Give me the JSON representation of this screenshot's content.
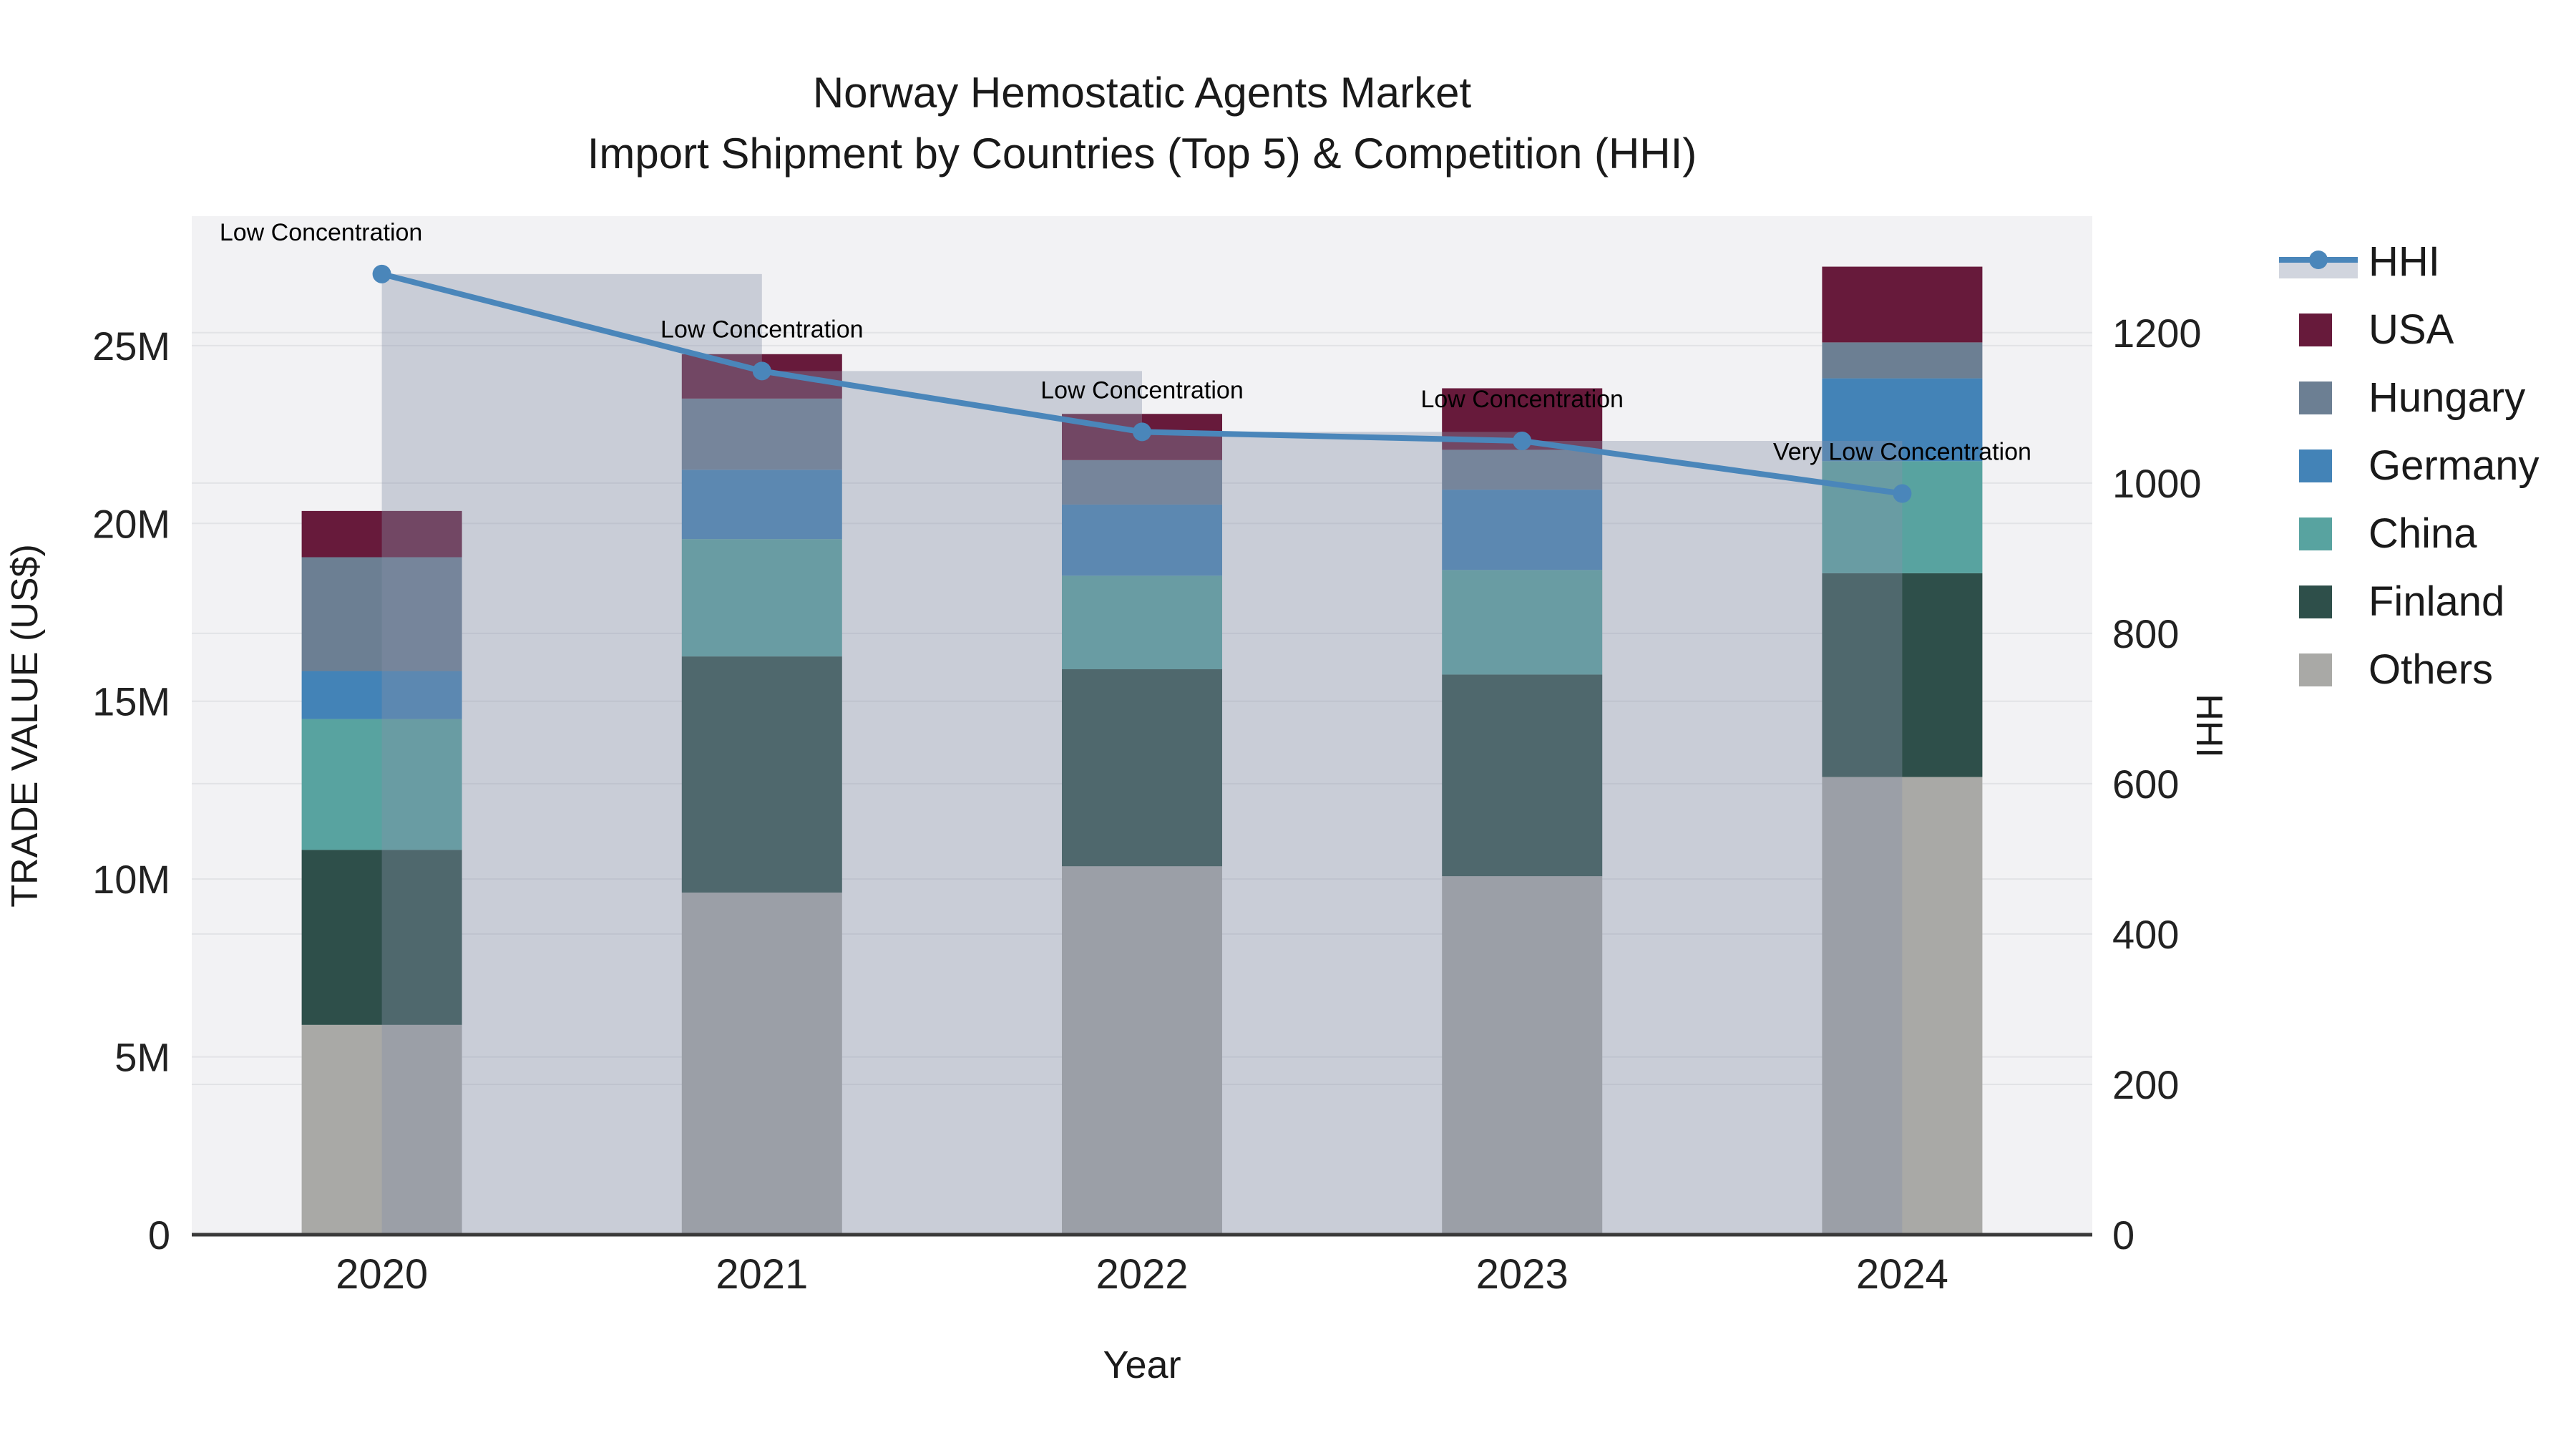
{
  "title": {
    "line1": "Norway Hemostatic Agents Market",
    "line2": "Import Shipment by Countries (Top 5) & Competition (HHI)"
  },
  "axes": {
    "xlabel": "Year",
    "ylabel_left": "TRADE VALUE (US$)",
    "ylabel_right": "HHI",
    "yticks_left_labels": [
      "0",
      "5M",
      "10M",
      "15M",
      "20M",
      "25M"
    ],
    "yticks_left_values": [
      0,
      5,
      10,
      15,
      20,
      25
    ],
    "yticks_right_labels": [
      "0",
      "200",
      "400",
      "600",
      "800",
      "1000",
      "1200"
    ],
    "yticks_right_values": [
      0,
      200,
      400,
      600,
      800,
      1000,
      1200
    ],
    "ylim_left": [
      0,
      28.64
    ],
    "ylim_right": [
      0,
      1355
    ]
  },
  "chart_data": {
    "type": "bar+line",
    "categories": [
      "2020",
      "2021",
      "2022",
      "2023",
      "2024"
    ],
    "unit": "US$ millions",
    "stack_order_bottom_to_top": [
      "Others",
      "Finland",
      "China",
      "Germany",
      "Hungary",
      "USA"
    ],
    "series": [
      {
        "name": "Others",
        "color": "#A9A9A6",
        "values": [
          5.9,
          9.62,
          10.36,
          10.08,
          12.87
        ]
      },
      {
        "name": "Finland",
        "color": "#2E4F4A",
        "values": [
          4.92,
          6.64,
          5.54,
          5.67,
          5.73
        ]
      },
      {
        "name": "China",
        "color": "#58A3A0",
        "values": [
          3.68,
          3.3,
          2.63,
          2.94,
          3.15
        ]
      },
      {
        "name": "Germany",
        "color": "#4383B7",
        "values": [
          1.35,
          1.95,
          2.0,
          2.26,
          2.33
        ]
      },
      {
        "name": "Hungary",
        "color": "#6C7F93",
        "values": [
          3.2,
          2.0,
          1.25,
          1.12,
          1.01
        ]
      },
      {
        "name": "USA",
        "color": "#671A3B",
        "values": [
          1.3,
          1.25,
          1.3,
          1.73,
          2.13
        ]
      }
    ],
    "totals": [
      20.35,
      24.76,
      23.08,
      23.8,
      27.22
    ],
    "line": {
      "name": "HHI",
      "color": "#4A86BA",
      "fill_color": "rgba(134,145,168,0.38)",
      "values": [
        1278,
        1149,
        1068,
        1056,
        986
      ],
      "fill_style": "step-hv-to-zero"
    },
    "annotations": [
      {
        "text": "Low Concentration",
        "year": "2020",
        "dx": -85
      },
      {
        "text": "Low Concentration",
        "year": "2021",
        "dx": 0
      },
      {
        "text": "Low Concentration",
        "year": "2022",
        "dx": 0
      },
      {
        "text": "Low Concentration",
        "year": "2023",
        "dx": 0
      },
      {
        "text": "Very Low Concentration",
        "year": "2024",
        "dx": 0
      }
    ],
    "grid": true,
    "legend_position": "right"
  },
  "legend": {
    "items": [
      {
        "label": "HHI",
        "type": "line",
        "color": "#4A86BA"
      },
      {
        "label": "USA",
        "type": "swatch",
        "color": "#671A3B"
      },
      {
        "label": "Hungary",
        "type": "swatch",
        "color": "#6C7F93"
      },
      {
        "label": "Germany",
        "type": "swatch",
        "color": "#4383B7"
      },
      {
        "label": "China",
        "type": "swatch",
        "color": "#58A3A0"
      },
      {
        "label": "Finland",
        "type": "swatch",
        "color": "#2E4F4A"
      },
      {
        "label": "Others",
        "type": "swatch",
        "color": "#A9A9A6"
      }
    ]
  },
  "style": {
    "plot_bg": "#F2F2F4",
    "grid_color": "#E2E3E6",
    "axis_line_color": "#3A3A3A",
    "text_color": "#1a1a1a",
    "tick_color": "#222222"
  }
}
